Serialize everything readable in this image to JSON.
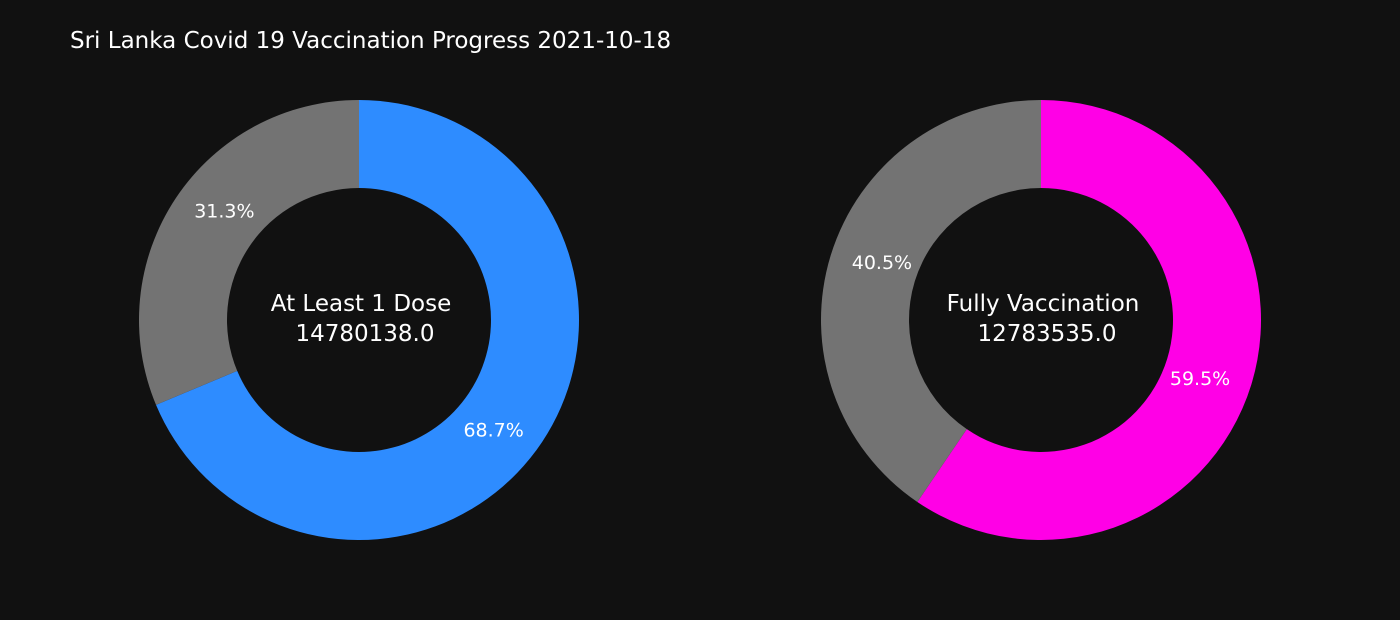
{
  "title": "Sri Lanka Covid 19 Vaccination Progress 2021-10-18",
  "chart_data": [
    {
      "type": "pie",
      "hole": 0.6,
      "center_label_line1": "At Least 1 Dose",
      "center_label_line2": "14780138.0",
      "slices": [
        {
          "value": 68.7,
          "label": "68.7%",
          "color": "#2e8cff"
        },
        {
          "value": 31.3,
          "label": "31.3%",
          "color": "#737373"
        }
      ]
    },
    {
      "type": "pie",
      "hole": 0.6,
      "center_label_line1": "Fully Vaccination",
      "center_label_line2": "12783535.0",
      "slices": [
        {
          "value": 59.5,
          "label": "59.5%",
          "color": "#ff00e6"
        },
        {
          "value": 40.5,
          "label": "40.5%",
          "color": "#737373"
        }
      ]
    }
  ]
}
